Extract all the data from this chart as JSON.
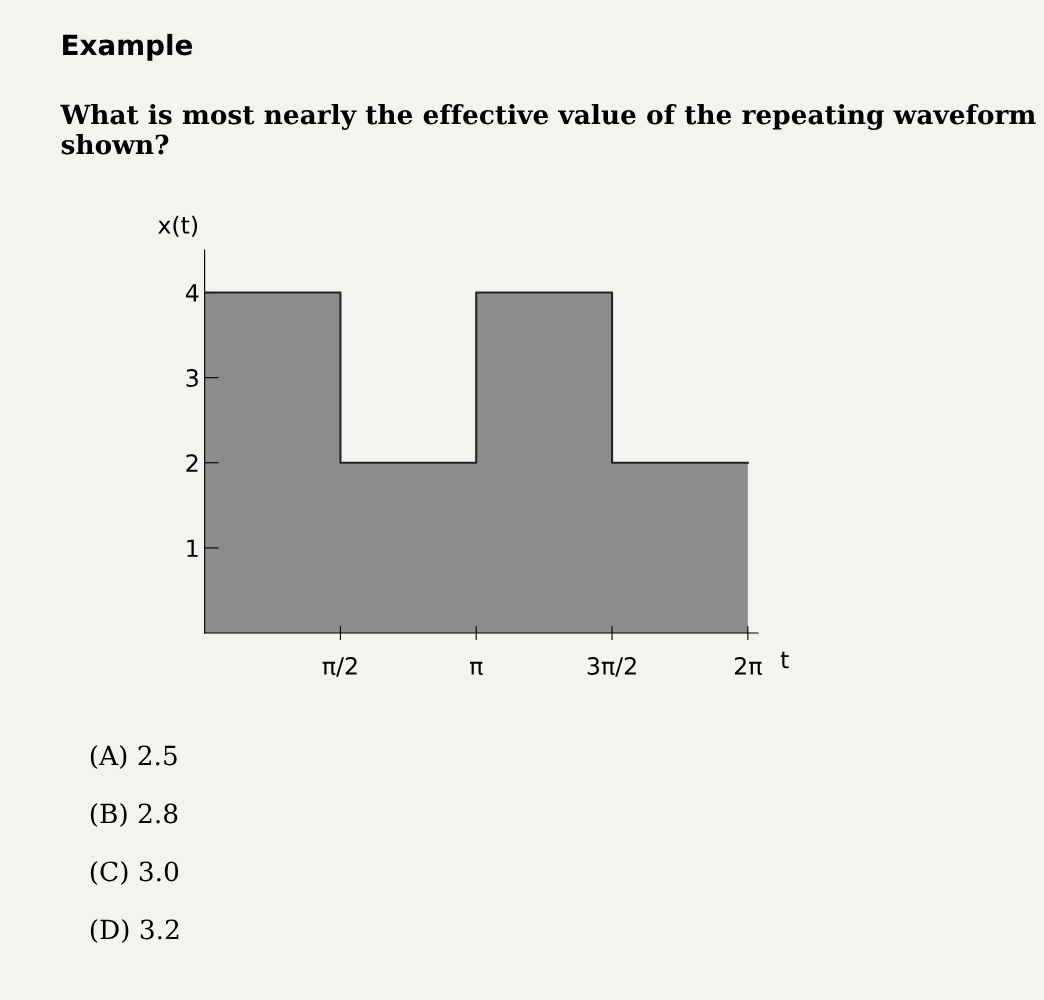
{
  "chart_data": {
    "type": "area",
    "title": "Example",
    "subtitle": "What is most nearly the effective value of the repeating waveform shown?",
    "xlabel": "t",
    "ylabel": "x(t)",
    "x": [
      0,
      1.5708,
      1.5708,
      3.1416,
      3.1416,
      4.7124,
      4.7124,
      6.2832
    ],
    "series": [
      {
        "color": "#8c8c8c",
        "values": [
          4,
          4,
          2,
          2,
          4,
          4,
          2,
          2
        ]
      }
    ],
    "xlim": [
      0,
      6.4
    ],
    "ylim": [
      0,
      4.5
    ],
    "xticks": [
      {
        "value": 1.5708,
        "label": "π/2"
      },
      {
        "value": 3.1416,
        "label": "π"
      },
      {
        "value": 4.7124,
        "label": "3π/2"
      },
      {
        "value": 6.2832,
        "label": "2π"
      }
    ],
    "yticks": [
      1,
      2,
      3,
      4
    ],
    "grid": false,
    "legend": false,
    "annotations": [
      "(A) 2.5",
      "(B) 2.8",
      "(C) 3.0",
      "(D) 3.2"
    ]
  }
}
